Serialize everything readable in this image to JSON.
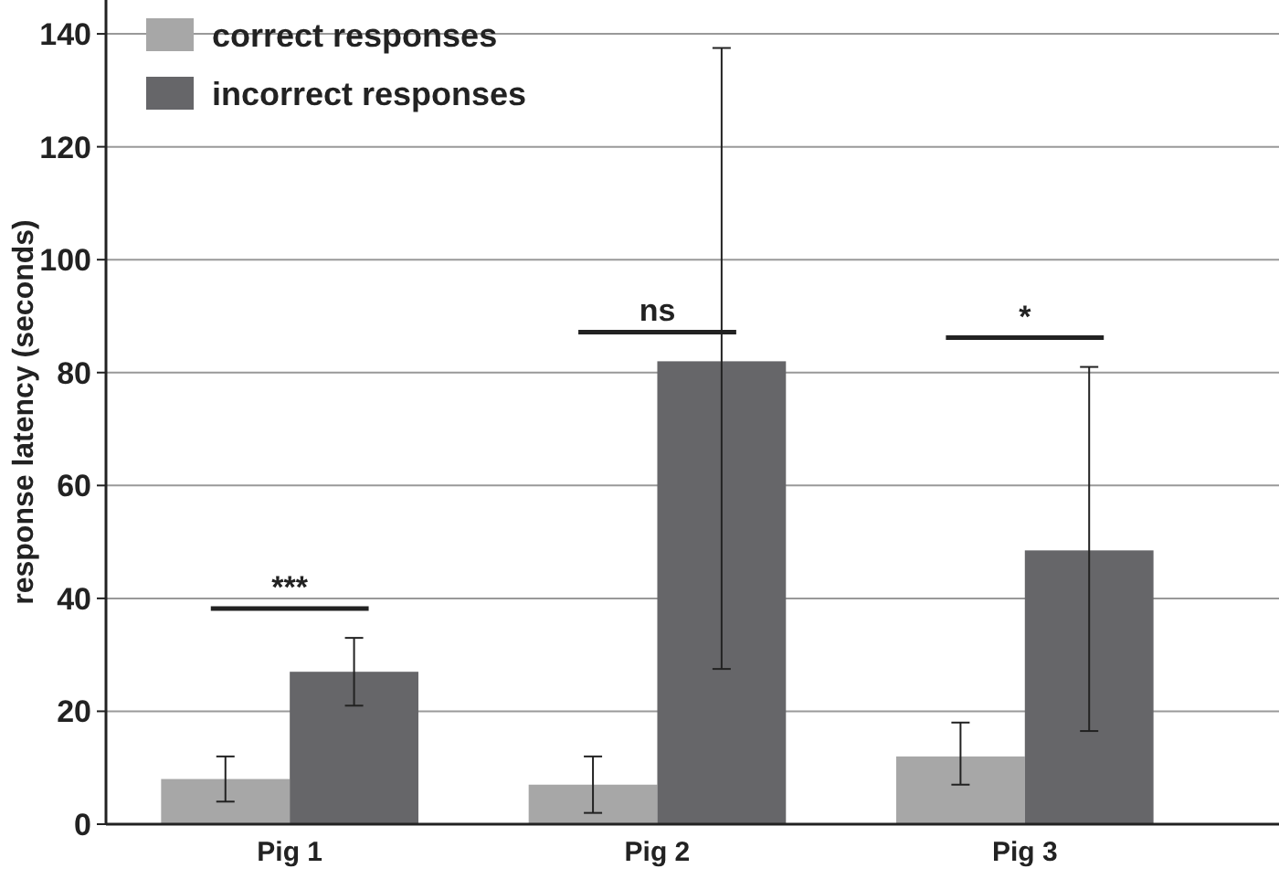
{
  "chart_data": {
    "type": "bar",
    "ylabel": "response latency (seconds)",
    "categories": [
      "Pig 1",
      "Pig 2",
      "Pig 3"
    ],
    "series": [
      {
        "name": "correct responses",
        "color": "#a7a7a7",
        "values": [
          8,
          7,
          12
        ],
        "errors": [
          [
            4,
            12
          ],
          [
            2,
            12
          ],
          [
            7,
            18
          ]
        ]
      },
      {
        "name": "incorrect responses",
        "color": "#666669",
        "values": [
          27,
          82,
          48.5
        ],
        "errors": [
          [
            21,
            33
          ],
          [
            27.5,
            137.5
          ],
          [
            16.5,
            81
          ]
        ]
      }
    ],
    "ylim": [
      0,
      146
    ],
    "yticks": [
      0,
      20,
      40,
      60,
      80,
      100,
      120,
      140
    ],
    "grid": "y",
    "legend": "top left",
    "annotations": [
      "***",
      "ns",
      "*"
    ]
  }
}
